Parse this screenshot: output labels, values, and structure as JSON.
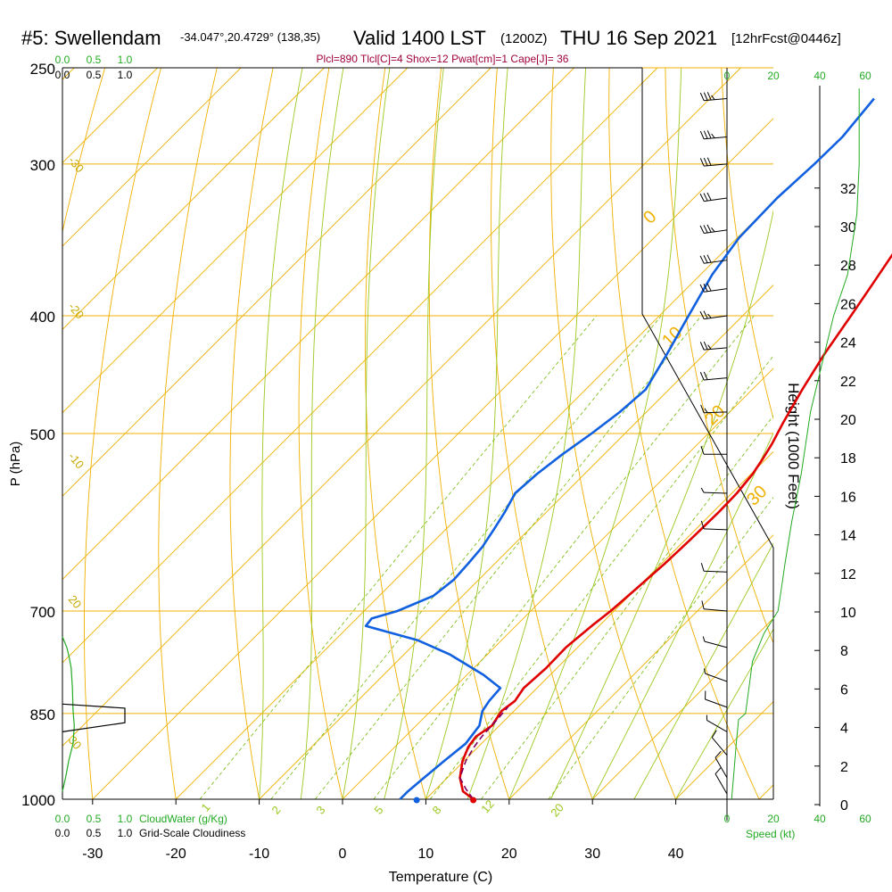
{
  "header": {
    "station": "#5: Swellendam",
    "location": "-34.047°,20.4729° (138,35)",
    "valid": "Valid 1400 LST",
    "zulu": "(1200Z)",
    "date": "THU 16 Sep 2021",
    "forecast": "[12hrFcst@0446z]",
    "indices": "Plcl=890 Tlcl[C]=4 Shox=12 Pwat[cm]=1 Cape[J]= 36"
  },
  "chart_data": {
    "type": "line",
    "title": "#5: Swellendam",
    "xlabel": "Temperature (C)",
    "ylabel": "P (hPa)",
    "right_ylabel": "Height (1000 Feet)",
    "xlim": [
      -35,
      45
    ],
    "ylim": [
      1000,
      250
    ],
    "x_ticks": [
      "-30",
      "-20",
      "-10",
      "0",
      "10",
      "20",
      "30",
      "40"
    ],
    "p_ticks": [
      "250",
      "300",
      "400",
      "500",
      "700",
      "850",
      "1000"
    ],
    "height_ticks": [
      "0",
      "2",
      "4",
      "6",
      "8",
      "10",
      "12",
      "14",
      "16",
      "18",
      "20",
      "22",
      "24",
      "26",
      "28",
      "30",
      "32"
    ],
    "dry_adiabat_labels": [
      "30",
      "20",
      "10",
      "0",
      "-10",
      "-20",
      "-30"
    ],
    "isotherm_labels": [
      "0",
      "10",
      "20",
      "30"
    ],
    "mixing_ratio_labels": [
      "1",
      "2",
      "3",
      "5",
      "8",
      "12",
      "20"
    ],
    "cloudwater_axis": {
      "label": "CloudWater (g/Kg)",
      "ticks": [
        "0.0",
        "0.5",
        "1.0"
      ]
    },
    "cloudiness_axis": {
      "label": "Grid-Scale Cloudiness",
      "ticks": [
        "0.0",
        "0.5",
        "1.0"
      ]
    },
    "speed_axis": {
      "label": "Speed (kt)",
      "ticks": [
        "0",
        "20",
        "40",
        "60"
      ]
    },
    "series": [
      {
        "name": "Temperature",
        "color": "#e00000",
        "points": [
          [
            15.7,
            1000
          ],
          [
            13.5,
            985
          ],
          [
            11.5,
            960
          ],
          [
            9.8,
            930
          ],
          [
            8.8,
            905
          ],
          [
            8.5,
            888
          ],
          [
            9.1,
            870
          ],
          [
            8.5,
            846
          ],
          [
            8.9,
            830
          ],
          [
            8.4,
            810
          ],
          [
            8.7,
            780
          ],
          [
            8.6,
            750
          ],
          [
            9.1,
            720
          ],
          [
            9.6,
            700
          ],
          [
            10.0,
            670
          ],
          [
            10.4,
            640
          ],
          [
            10.6,
            610
          ],
          [
            10.7,
            580
          ],
          [
            10.6,
            560
          ],
          [
            10.2,
            540
          ],
          [
            9.6,
            525
          ],
          [
            8.9,
            510
          ],
          [
            7.7,
            490
          ],
          [
            6.0,
            460
          ],
          [
            4.4,
            430
          ],
          [
            3.0,
            400
          ],
          [
            1.7,
            375
          ],
          [
            0.4,
            352
          ],
          [
            -1.1,
            330
          ],
          [
            -2.7,
            310
          ],
          [
            -4.1,
            290
          ],
          [
            -5.2,
            270
          ]
        ]
      },
      {
        "name": "Dewpoint",
        "color": "#1060e0",
        "points": [
          [
            6.9,
            1000
          ],
          [
            6.9,
            985
          ],
          [
            7.2,
            960
          ],
          [
            7.6,
            930
          ],
          [
            8.1,
            900
          ],
          [
            7.6,
            870
          ],
          [
            6.2,
            846
          ],
          [
            5.8,
            830
          ],
          [
            5.6,
            810
          ],
          [
            2.0,
            790
          ],
          [
            -4.5,
            760
          ],
          [
            -10.0,
            740
          ],
          [
            -18.0,
            720
          ],
          [
            -18.2,
            710
          ],
          [
            -16.0,
            700
          ],
          [
            -13.5,
            680
          ],
          [
            -13.0,
            660
          ],
          [
            -13.2,
            640
          ],
          [
            -13.5,
            620
          ],
          [
            -14.2,
            600
          ],
          [
            -15.0,
            580
          ],
          [
            -16.0,
            560
          ],
          [
            -15.7,
            540
          ],
          [
            -15.0,
            520
          ],
          [
            -14.0,
            500
          ],
          [
            -13.2,
            480
          ],
          [
            -12.8,
            460
          ],
          [
            -14.5,
            430
          ],
          [
            -16.5,
            400
          ],
          [
            -18.6,
            370
          ],
          [
            -19.8,
            345
          ],
          [
            -20.0,
            320
          ],
          [
            -19.6,
            300
          ],
          [
            -19.5,
            285
          ],
          [
            -20.3,
            265
          ]
        ]
      },
      {
        "name": "Parcel",
        "color": "#800060",
        "dashed": true,
        "points": [
          [
            15.7,
            1000
          ],
          [
            13.5,
            980
          ],
          [
            11.5,
            960
          ],
          [
            10.2,
            930
          ],
          [
            9.5,
            905
          ],
          [
            9.2,
            888
          ],
          [
            9.0,
            860
          ],
          [
            8.8,
            840
          ]
        ]
      }
    ],
    "wind_profile": [
      {
        "p": 265,
        "spd": 35,
        "dir": 265
      },
      {
        "p": 285,
        "spd": 38,
        "dir": 265
      },
      {
        "p": 300,
        "spd": 32,
        "dir": 265
      },
      {
        "p": 320,
        "spd": 34,
        "dir": 262
      },
      {
        "p": 340,
        "spd": 36,
        "dir": 262
      },
      {
        "p": 360,
        "spd": 34,
        "dir": 262
      },
      {
        "p": 380,
        "spd": 32,
        "dir": 262
      },
      {
        "p": 400,
        "spd": 28,
        "dir": 262
      },
      {
        "p": 425,
        "spd": 25,
        "dir": 265
      },
      {
        "p": 450,
        "spd": 22,
        "dir": 265
      },
      {
        "p": 480,
        "spd": 16,
        "dir": 268
      },
      {
        "p": 520,
        "spd": 10,
        "dir": 270
      },
      {
        "p": 560,
        "spd": 8,
        "dir": 272
      },
      {
        "p": 600,
        "spd": 10,
        "dir": 272
      },
      {
        "p": 650,
        "spd": 12,
        "dir": 272
      },
      {
        "p": 700,
        "spd": 10,
        "dir": 275
      },
      {
        "p": 750,
        "spd": 8,
        "dir": 285
      },
      {
        "p": 800,
        "spd": 8,
        "dir": 290
      },
      {
        "p": 840,
        "spd": 10,
        "dir": 290
      },
      {
        "p": 880,
        "spd": 8,
        "dir": 300
      },
      {
        "p": 920,
        "spd": 10,
        "dir": 320
      },
      {
        "p": 960,
        "spd": 12,
        "dir": 330
      },
      {
        "p": 990,
        "spd": 10,
        "dir": 330
      }
    ],
    "speed_profile": [
      [
        2,
        1000
      ],
      [
        3,
        950
      ],
      [
        4,
        900
      ],
      [
        5,
        860
      ],
      [
        8,
        850
      ],
      [
        11,
        770
      ],
      [
        16,
        730
      ],
      [
        22,
        700
      ],
      [
        24,
        660
      ],
      [
        25,
        640
      ],
      [
        28,
        590
      ],
      [
        32,
        540
      ],
      [
        36,
        480
      ],
      [
        42,
        430
      ],
      [
        46,
        400
      ],
      [
        52,
        370
      ],
      [
        56,
        330
      ],
      [
        57,
        300
      ],
      [
        57,
        260
      ]
    ],
    "cloudwater_profile": [
      [
        0,
        985
      ],
      [
        0.05,
        960
      ],
      [
        0.1,
        930
      ],
      [
        0.17,
        900
      ],
      [
        0.19,
        870
      ],
      [
        0.17,
        845
      ],
      [
        0.16,
        810
      ],
      [
        0.14,
        780
      ],
      [
        0.11,
        765
      ],
      [
        0.07,
        750
      ],
      [
        0,
        735
      ]
    ],
    "cloudiness_block": {
      "p_top": 835,
      "p_mid": 850,
      "p_bottom": 880,
      "fraction": 1.0
    }
  }
}
